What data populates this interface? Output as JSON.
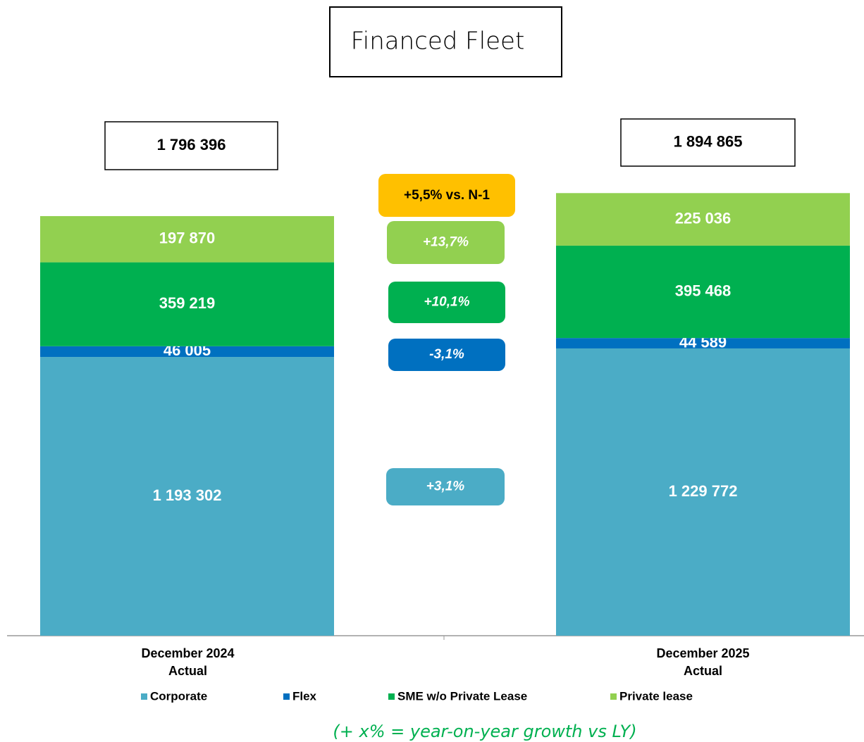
{
  "chart_data": {
    "type": "stacked_bar",
    "title": "Financed Fleet",
    "categories": [
      "December 2024\nActual",
      "December 2025\nActual"
    ],
    "series": [
      {
        "name": "Corporate",
        "color": "#4bacc6",
        "values": [
          1193302,
          1229772
        ],
        "value_labels": [
          "1 193 302",
          "1 229 772"
        ]
      },
      {
        "name": "Flex",
        "color": "#0070c0",
        "values": [
          46005,
          44589
        ],
        "value_labels": [
          "46 005",
          "44 589"
        ]
      },
      {
        "name": "SME w/o Private Lease",
        "color": "#00b050",
        "values": [
          359219,
          395468
        ],
        "value_labels": [
          "359 219",
          "395 468"
        ]
      },
      {
        "name": "Private lease",
        "color": "#92d050",
        "values": [
          197870,
          225036
        ],
        "value_labels": [
          "197 870",
          "225 036"
        ]
      }
    ],
    "totals": {
      "values": [
        1796396,
        1894865
      ],
      "value_labels": [
        "1 796 396",
        "1 894 865"
      ]
    },
    "growth": {
      "values": [
        3.1,
        -3.1,
        10.1,
        13.7
      ],
      "value_labels": [
        "+3,1%",
        "-3,1%",
        "+10,1%",
        "+13,7%"
      ]
    },
    "total_growth": {
      "value": 5.5,
      "label": "+5,5% vs. N-1"
    },
    "ylim": [
      0,
      2000000
    ],
    "legend": "bottom",
    "footnote": "(+ x% = year-on-year growth vs LY)"
  }
}
